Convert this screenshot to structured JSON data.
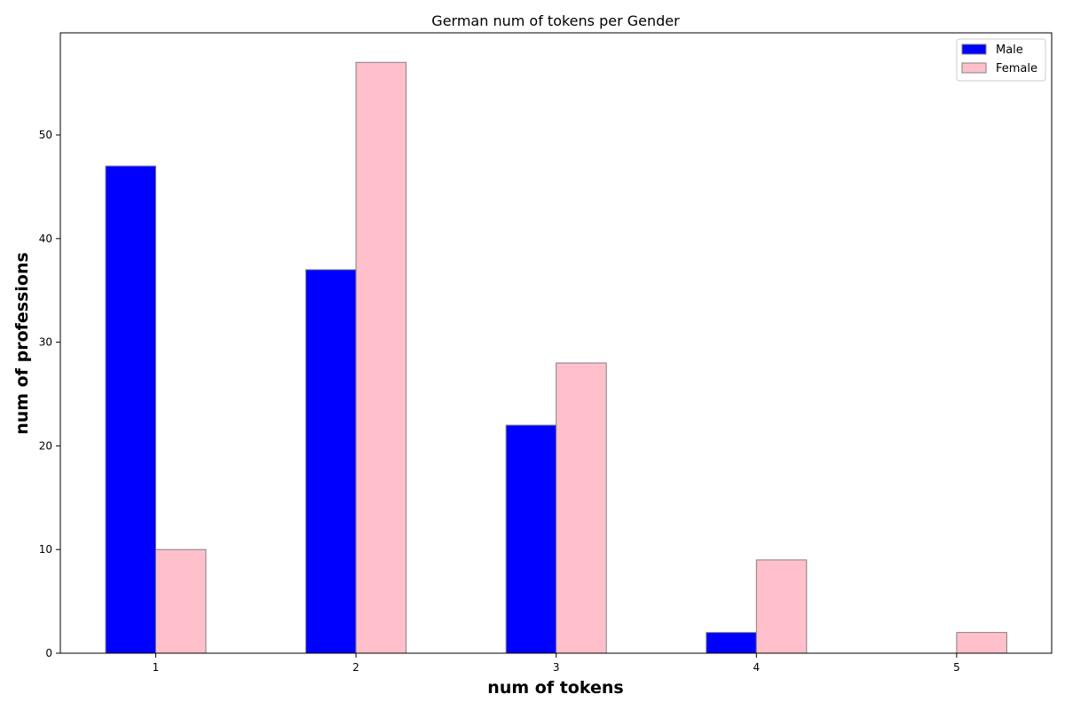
{
  "chart_data": {
    "type": "bar",
    "title": "German num of tokens per Gender",
    "xlabel": "num of tokens",
    "ylabel": "num of professions",
    "categories": [
      "1",
      "2",
      "3",
      "4",
      "5"
    ],
    "series": [
      {
        "name": "Male",
        "values": [
          47,
          37,
          22,
          2,
          0
        ],
        "color": "#0000ff"
      },
      {
        "name": "Female",
        "values": [
          10,
          57,
          28,
          9,
          2
        ],
        "color": "#ffc0cb"
      }
    ],
    "yticks": [
      "0",
      "10",
      "20",
      "30",
      "40",
      "50"
    ],
    "ylim": [
      0,
      59.85
    ],
    "grid": false,
    "legend_position": "top-right",
    "bar_edge_color": "#808080"
  }
}
